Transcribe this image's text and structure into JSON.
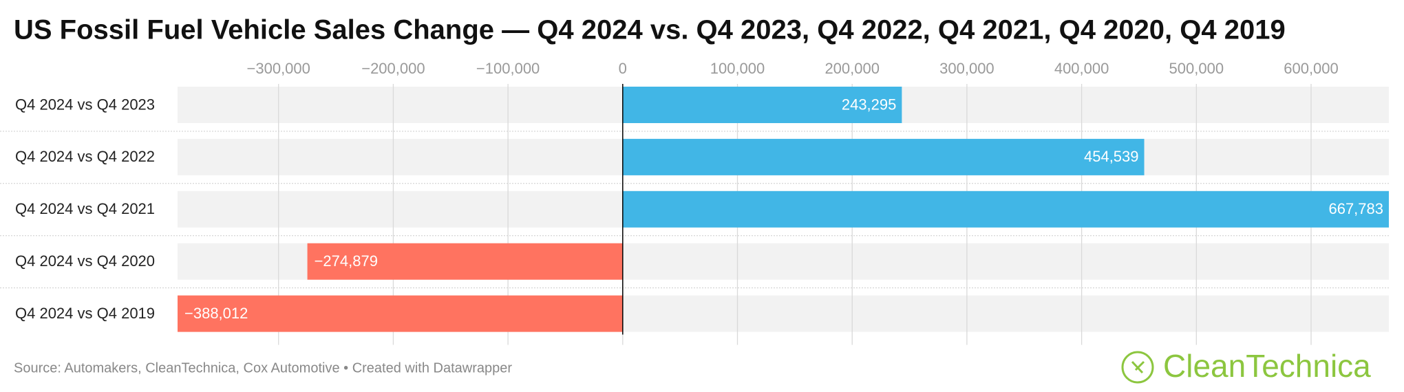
{
  "chart_data": {
    "type": "hbar",
    "title": "US Fossil Fuel Vehicle Sales Change — Q4 2024 vs. Q4 2023, Q4 2022, Q4 2021, Q4 2020, Q4 2019",
    "categories": [
      "Q4 2024 vs Q4 2023",
      "Q4 2024 vs Q4 2022",
      "Q4 2024 vs Q4 2021",
      "Q4 2024 vs Q4 2020",
      "Q4 2024 vs Q4 2019"
    ],
    "values": [
      243295,
      454539,
      667783,
      -274879,
      -388012
    ],
    "value_labels": [
      "243,295",
      "454,539",
      "667,783",
      "−274,879",
      "−388,012"
    ],
    "positive_color": "#41b6e6",
    "negative_color": "#ff7360",
    "xlim": [
      -388012,
      667783
    ],
    "xticks": [
      {
        "value": -300000,
        "label": "−300,000"
      },
      {
        "value": -200000,
        "label": "−200,000"
      },
      {
        "value": -100000,
        "label": "−100,000"
      },
      0,
      {
        "value": 100000,
        "label": "100,000"
      },
      {
        "value": 200000,
        "label": "200,000"
      },
      {
        "value": 300000,
        "label": "300,000"
      },
      {
        "value": 400000,
        "label": "400,000"
      },
      {
        "value": 500000,
        "label": "500,000"
      },
      {
        "value": 600000,
        "label": "600,000"
      }
    ],
    "grid": true,
    "source": "Source: Automakers, CleanTechnica, Cox Automotive • Created with Datawrapper",
    "logo": "CleanTechnica"
  }
}
